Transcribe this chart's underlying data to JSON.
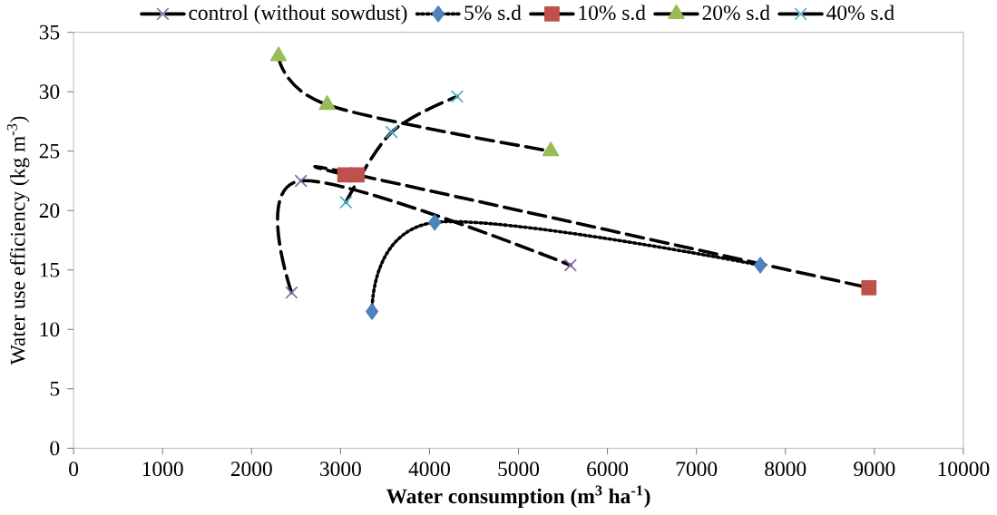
{
  "chart_data": {
    "type": "line",
    "xlabel": "Water consumption (m$^{3}$ ha$^{-1}$)",
    "ylabel": "Water use efficiency (kg m$^{-3}$)",
    "xlim": [
      0,
      10000
    ],
    "ylim": [
      0,
      35
    ],
    "xticks": [
      0,
      1000,
      2000,
      3000,
      4000,
      5000,
      6000,
      7000,
      8000,
      9000,
      10000
    ],
    "yticks": [
      0,
      5,
      10,
      15,
      20,
      25,
      30,
      35
    ],
    "legend": "top",
    "grid": false,
    "series": [
      {
        "name": "control (without sowdust)",
        "color": "#8064a2",
        "marker": "cross",
        "line_style": "dashed",
        "x": [
          2450,
          2555,
          5584
        ],
        "values": [
          13.1,
          22.5,
          15.4
        ]
      },
      {
        "name": "5% s.d",
        "color": "#4f81bd",
        "marker": "diamond",
        "line_style": "dotted",
        "x": [
          3354,
          4059,
          7718
        ],
        "values": [
          11.5,
          19.0,
          15.4
        ]
      },
      {
        "name": "10% s.d",
        "color": "#c0504d",
        "marker": "square",
        "line_style": "dashed",
        "x": [
          3049,
          3186,
          8938
        ],
        "values": [
          23.0,
          23.0,
          13.5
        ]
      },
      {
        "name": "20% s.d",
        "color": "#9bbb59",
        "marker": "triangle",
        "line_style": "dashed",
        "x": [
          2303,
          2850,
          5363
        ],
        "values": [
          33.0,
          28.9,
          25.0
        ]
      },
      {
        "name": "40% s.d",
        "color": "#4bacc6",
        "marker": "cross",
        "line_style": "dashed",
        "x": [
          3060,
          3575,
          4311
        ],
        "values": [
          20.7,
          26.6,
          29.6
        ]
      }
    ]
  }
}
